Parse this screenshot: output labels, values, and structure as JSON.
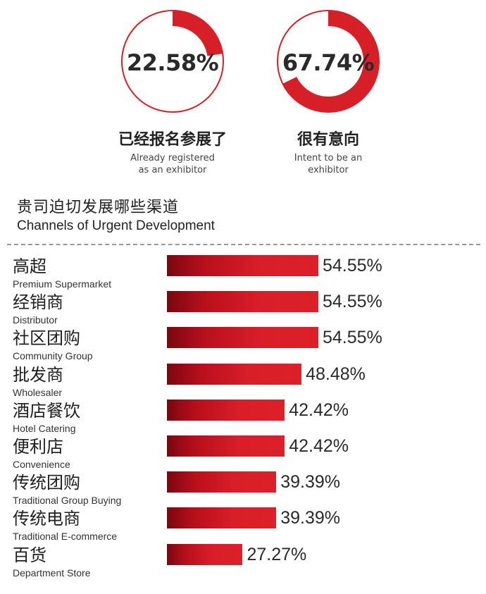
{
  "colors": {
    "accent": "#d61f26",
    "ring_track": "#d61f26"
  },
  "donuts": [
    {
      "value": 22.58,
      "value_label": "22.58%",
      "title": "已经报名参展了",
      "subtitle_line1": "Already registered",
      "subtitle_line2": "as an exhibitor"
    },
    {
      "value": 67.74,
      "value_label": "67.74%",
      "title": "很有意向",
      "subtitle_line1": "Intent to be an",
      "subtitle_line2": "exhibitor"
    }
  ],
  "section": {
    "title_zh": "贵司迫切发展哪些渠道",
    "title_en": "Channels of Urgent Development"
  },
  "chart_data": {
    "type": "bar",
    "orientation": "horizontal",
    "title": "贵司迫切发展哪些渠道",
    "subtitle": "Channels of Urgent Development",
    "categories": [
      "高超",
      "经销商",
      "社区团购",
      "批发商",
      "酒店餐饮",
      "便利店",
      "传统团购",
      "传统电商",
      "百货"
    ],
    "categories_en": [
      "Premium Supermarket",
      "Distributor",
      "Community Group",
      "Wholesaler",
      "Hotel Catering",
      "Convenience",
      "Traditional Group Buying",
      "Traditional E-commerce",
      "Department Store"
    ],
    "values": [
      54.55,
      54.55,
      54.55,
      48.48,
      42.42,
      42.42,
      39.39,
      39.39,
      27.27
    ],
    "value_labels": [
      "54.55%",
      "54.55%",
      "54.55%",
      "48.48%",
      "42.42%",
      "42.42%",
      "39.39%",
      "39.39%",
      "27.27%"
    ],
    "xlim": [
      0,
      100
    ],
    "grid": false,
    "legend": "none"
  }
}
